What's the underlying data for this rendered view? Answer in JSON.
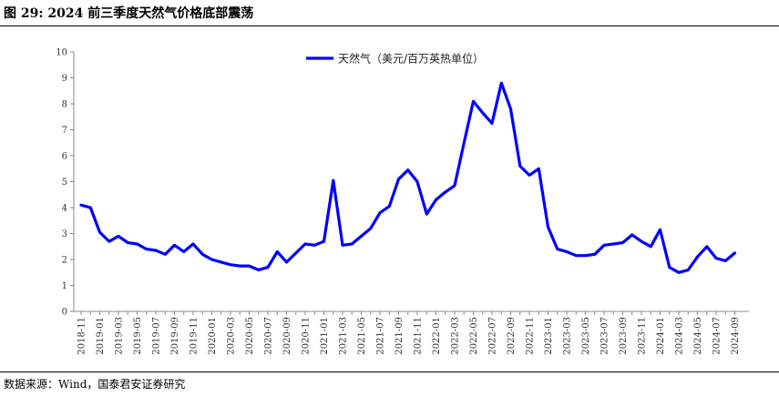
{
  "figure": {
    "title": "图 29:  2024 前三季度天然气价格底部震荡",
    "source": "数据来源：Wind，国泰君安证券研究"
  },
  "chart_data": {
    "type": "line",
    "title": "",
    "xlabel": "",
    "ylabel": "",
    "ylim": [
      0,
      10
    ],
    "yticks": [
      0,
      1,
      2,
      3,
      4,
      5,
      6,
      7,
      8,
      9,
      10
    ],
    "grid": false,
    "legend_position": "top-center",
    "x_tick_labels": [
      "2018-11",
      "2019-01",
      "2019-03",
      "2019-05",
      "2019-07",
      "2019-09",
      "2019-11",
      "2020-01",
      "2020-03",
      "2020-05",
      "2020-07",
      "2020-09",
      "2020-11",
      "2021-01",
      "2021-03",
      "2021-05",
      "2021-07",
      "2021-09",
      "2021-11",
      "2022-01",
      "2022-03",
      "2022-05",
      "2022-07",
      "2022-09",
      "2022-11",
      "2023-01",
      "2023-03",
      "2023-05",
      "2023-07",
      "2023-09",
      "2023-11",
      "2024-01",
      "2024-03",
      "2024-05",
      "2024-07",
      "2024-09"
    ],
    "series": [
      {
        "name": "天然气（美元/百万英热单位）",
        "color": "#0000ff",
        "x": [
          "2018-11",
          "2018-12",
          "2019-01",
          "2019-02",
          "2019-03",
          "2019-04",
          "2019-05",
          "2019-06",
          "2019-07",
          "2019-08",
          "2019-09",
          "2019-10",
          "2019-11",
          "2019-12",
          "2020-01",
          "2020-02",
          "2020-03",
          "2020-04",
          "2020-05",
          "2020-06",
          "2020-07",
          "2020-08",
          "2020-09",
          "2020-10",
          "2020-11",
          "2020-12",
          "2021-01",
          "2021-02",
          "2021-03",
          "2021-04",
          "2021-05",
          "2021-06",
          "2021-07",
          "2021-08",
          "2021-09",
          "2021-10",
          "2021-11",
          "2021-12",
          "2022-01",
          "2022-02",
          "2022-03",
          "2022-04",
          "2022-05",
          "2022-06",
          "2022-07",
          "2022-08",
          "2022-09",
          "2022-10",
          "2022-11",
          "2022-12",
          "2023-01",
          "2023-02",
          "2023-03",
          "2023-04",
          "2023-05",
          "2023-06",
          "2023-07",
          "2023-08",
          "2023-09",
          "2023-10",
          "2023-11",
          "2023-12",
          "2024-01",
          "2024-02",
          "2024-03",
          "2024-04",
          "2024-05",
          "2024-06",
          "2024-07",
          "2024-08",
          "2024-09"
        ],
        "values": [
          4.1,
          4.0,
          3.05,
          2.7,
          2.9,
          2.65,
          2.6,
          2.4,
          2.35,
          2.2,
          2.55,
          2.3,
          2.6,
          2.2,
          2.0,
          1.9,
          1.8,
          1.75,
          1.75,
          1.6,
          1.7,
          2.3,
          1.9,
          2.25,
          2.6,
          2.55,
          2.7,
          5.05,
          2.55,
          2.6,
          2.9,
          3.2,
          3.8,
          4.05,
          5.1,
          5.45,
          5.0,
          3.75,
          4.3,
          4.6,
          4.85,
          6.5,
          8.1,
          7.65,
          7.25,
          8.8,
          7.8,
          5.6,
          5.25,
          5.5,
          3.25,
          2.4,
          2.3,
          2.15,
          2.15,
          2.2,
          2.55,
          2.6,
          2.65,
          2.95,
          2.7,
          2.5,
          3.15,
          1.7,
          1.5,
          1.6,
          2.1,
          2.5,
          2.05,
          1.95,
          2.25
        ]
      }
    ]
  }
}
